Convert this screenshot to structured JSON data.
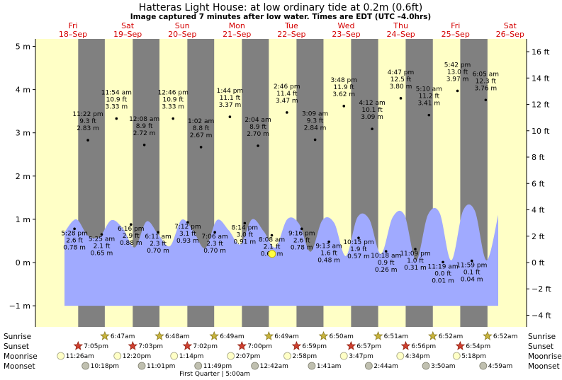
{
  "title": "Hatteras Light House: at low  ordinary tide at 0.2m (0.6ft)",
  "subtitle": "Image captured 7 minutes after low water. Times are EDT (UTC –4.0hrs)",
  "days": [
    {
      "dow": "Fri",
      "date": "18–Sep"
    },
    {
      "dow": "Sat",
      "date": "19–Sep"
    },
    {
      "dow": "Sun",
      "date": "20–Sep"
    },
    {
      "dow": "Mon",
      "date": "21–Sep"
    },
    {
      "dow": "Tue",
      "date": "22–Sep"
    },
    {
      "dow": "Wed",
      "date": "23–Sep"
    },
    {
      "dow": "Thu",
      "date": "24–Sep"
    },
    {
      "dow": "Fri",
      "date": "25–Sep"
    },
    {
      "dow": "Sat",
      "date": "26–Sep"
    }
  ],
  "colors": {
    "day_band": "#ffffc6",
    "night_band": "#808080",
    "tide_fill": "#a0aaff",
    "day_label": "#d40000",
    "marker": "#000000",
    "current_marker": "#ffff40"
  },
  "icons": {
    "sunrise": "sunrise-star-icon",
    "sunset": "sunset-star-icon",
    "moonrise": "moonrise-circle-icon",
    "moonset": "moonset-circle-icon"
  },
  "chart_data": {
    "type": "area",
    "y_left_unit": "m",
    "y_right_unit": "ft",
    "ylim_m": [
      -1,
      5
    ],
    "y_left_ticks": [
      "−1 m",
      "0 m",
      "1 m",
      "2 m",
      "3 m",
      "4 m",
      "5 m"
    ],
    "y_right_ticks": [
      "−4 ft",
      "−2 ft",
      "0 ft",
      "2 ft",
      "4 ft",
      "6 ft",
      "8 ft",
      "10 ft",
      "12 ft",
      "14 ft",
      "16 ft"
    ],
    "grid": false,
    "tide_curve_start_time": "18-Sep 3:00 pm",
    "tide_curve_end_time": "26-Sep 5:00 pm",
    "tide_curve_m": [
      0.7,
      1.0,
      0.62,
      0.6,
      0.98,
      0.78,
      0.35,
      0.95,
      0.65,
      0.38,
      0.99,
      0.72,
      0.33,
      0.98,
      0.75,
      0.42,
      1.0,
      0.72,
      0.35,
      1.0,
      0.9,
      0.25,
      0.98,
      0.92,
      0.15,
      1.05,
      1.0,
      0.2,
      1.05,
      1.1,
      0.05,
      1.1,
      1.15,
      0.05,
      1.2,
      1.2,
      0.05,
      1.1
    ],
    "extremes": [
      {
        "time": "5:28 pm",
        "ft": "2.6 ft",
        "m": "0.78 m"
      },
      {
        "time": "11:22 pm",
        "ft": "9.3 ft",
        "m": "2.83 m"
      },
      {
        "time": "5:25 am",
        "ft": "2.1 ft",
        "m": "0.65 m"
      },
      {
        "time": "11:54 am",
        "ft": "10.9 ft",
        "m": "3.33 m"
      },
      {
        "time": "6:16 pm",
        "ft": "2.9 ft",
        "m": "0.88 m"
      },
      {
        "time": "12:08 am",
        "ft": "8.9 ft",
        "m": "2.72 m"
      },
      {
        "time": "6:11 am",
        "ft": "2.3 ft",
        "m": "0.70 m"
      },
      {
        "time": "12:46 pm",
        "ft": "10.9 ft",
        "m": "3.33 m"
      },
      {
        "time": "7:12 pm",
        "ft": "3.1 ft",
        "m": "0.93 m"
      },
      {
        "time": "1:02 am",
        "ft": "8.8 ft",
        "m": "2.67 m"
      },
      {
        "time": "7:06 am",
        "ft": "2.3 ft",
        "m": "0.70 m"
      },
      {
        "time": "1:44 pm",
        "ft": "11.1 ft",
        "m": "3.37 m"
      },
      {
        "time": "8:14 pm",
        "ft": "3.0 ft",
        "m": "0.91 m"
      },
      {
        "time": "2:04 am",
        "ft": "8.9 ft",
        "m": "2.70 m"
      },
      {
        "time": "8:08 am",
        "ft": "2.1 ft",
        "m": "0.63 m"
      },
      {
        "time": "2:46 pm",
        "ft": "11.4 ft",
        "m": "3.47 m"
      },
      {
        "time": "9:16 pm",
        "ft": "2.6 ft",
        "m": "0.78 m"
      },
      {
        "time": "3:09 am",
        "ft": "9.3 ft",
        "m": "2.84 m"
      },
      {
        "time": "9:13 am",
        "ft": "1.6 ft",
        "m": "0.48 m"
      },
      {
        "time": "3:48 pm",
        "ft": "11.9 ft",
        "m": "3.62 m"
      },
      {
        "time": "10:15 pm",
        "ft": "1.9 ft",
        "m": "0.57 m"
      },
      {
        "time": "4:12 am",
        "ft": "10.1 ft",
        "m": "3.09 m"
      },
      {
        "time": "10:18 am",
        "ft": "0.9 ft",
        "m": "0.26 m"
      },
      {
        "time": "4:47 pm",
        "ft": "12.5 ft",
        "m": "3.80 m"
      },
      {
        "time": "11:09 pm",
        "ft": "1.0 ft",
        "m": "0.31 m"
      },
      {
        "time": "5:10 am",
        "ft": "11.2 ft",
        "m": "3.41 m"
      },
      {
        "time": "11:19 am",
        "ft": "0.0 ft",
        "m": "0.01 m"
      },
      {
        "time": "5:42 pm",
        "ft": "13.0 ft",
        "m": "3.97 m"
      },
      {
        "time": "11:59 pm",
        "ft": "0.1 ft",
        "m": "0.04 m"
      },
      {
        "time": "6:05 am",
        "ft": "12.3 ft",
        "m": "3.76 m"
      }
    ],
    "current_tide_m": 0.2
  },
  "astro": {
    "row_labels": [
      "Sunrise",
      "Sunset",
      "Moonrise",
      "Moonset"
    ],
    "sunrise": [
      "6:47am",
      "6:48am",
      "6:49am",
      "6:49am",
      "6:50am",
      "6:51am",
      "6:52am",
      "6:52am"
    ],
    "sunset": [
      "7:05pm",
      "7:03pm",
      "7:02pm",
      "7:00pm",
      "6:59pm",
      "6:57pm",
      "6:56pm",
      "6:54pm"
    ],
    "moonrise": [
      "11:26am",
      "12:20pm",
      "1:14pm",
      "2:07pm",
      "2:58pm",
      "3:47pm",
      "4:34pm",
      "5:18pm"
    ],
    "moonset": [
      "10:18pm",
      "11:01pm",
      "11:49pm",
      "12:42am",
      "1:41am",
      "2:44am",
      "3:50am",
      "4:59am"
    ],
    "moon_phase": "First Quarter | 5:00am"
  }
}
